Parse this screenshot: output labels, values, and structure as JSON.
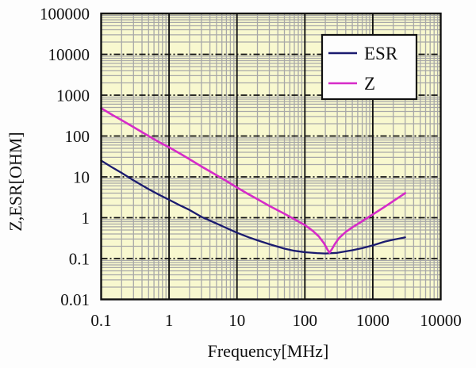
{
  "chart_data": {
    "type": "line",
    "title": "",
    "xlabel": "Frequency[MHz]",
    "ylabel": "Z,ESR[OHM]",
    "x_scale": "log",
    "y_scale": "log",
    "xlim": [
      0.1,
      10000
    ],
    "ylim": [
      0.01,
      100000
    ],
    "x_tick_labels": [
      "0.1",
      "1",
      "10",
      "100",
      "1000",
      "10000"
    ],
    "y_tick_labels": [
      "100000",
      "10000",
      "1000",
      "100",
      "10",
      "1",
      "0.1",
      "0.01"
    ],
    "grid": "major+minor",
    "legend": {
      "position": "top-right-inside",
      "items": [
        "ESR",
        "Z"
      ]
    },
    "series": [
      {
        "name": "ESR",
        "color": "#1b1b6f",
        "x": [
          0.1,
          0.15,
          0.2,
          0.3,
          0.5,
          0.7,
          1,
          1.5,
          2,
          3,
          5,
          7,
          10,
          15,
          20,
          30,
          50,
          70,
          100,
          150,
          200,
          300,
          500,
          700,
          1000,
          1500,
          2000,
          3000
        ],
        "y": [
          25,
          16.5,
          12.5,
          8.2,
          5.0,
          3.7,
          2.75,
          1.95,
          1.55,
          1.05,
          0.72,
          0.56,
          0.43,
          0.33,
          0.28,
          0.225,
          0.175,
          0.155,
          0.143,
          0.136,
          0.133,
          0.138,
          0.16,
          0.18,
          0.21,
          0.26,
          0.29,
          0.33
        ]
      },
      {
        "name": "Z",
        "color": "#d62bc8",
        "x": [
          0.1,
          0.15,
          0.2,
          0.3,
          0.5,
          0.7,
          1,
          1.5,
          2,
          3,
          5,
          7,
          10,
          15,
          20,
          30,
          50,
          70,
          100,
          130,
          160,
          190,
          215,
          230,
          250,
          280,
          320,
          400,
          500,
          700,
          1000,
          1500,
          2000,
          3000
        ],
        "y": [
          480,
          320,
          245,
          165,
          100,
          72,
          53,
          36,
          27,
          18,
          11,
          7.9,
          5.5,
          3.7,
          2.85,
          1.95,
          1.25,
          0.92,
          0.66,
          0.48,
          0.35,
          0.24,
          0.165,
          0.14,
          0.17,
          0.235,
          0.32,
          0.45,
          0.58,
          0.82,
          1.2,
          1.85,
          2.55,
          4.0
        ]
      }
    ]
  },
  "colors": {
    "page_bg": "#fdfdfd",
    "plot_bg": "#f8f8cf",
    "grid_minor": "#a8a8a8",
    "grid_major": "#111111",
    "frame": "#111111",
    "legend_bg": "#fdfdfd",
    "legend_border": "#111111",
    "text": "#111111"
  }
}
